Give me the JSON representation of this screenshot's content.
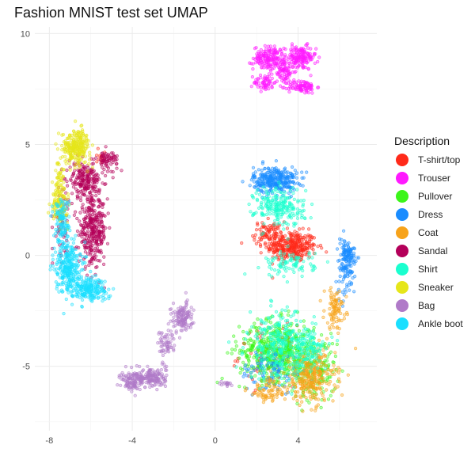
{
  "chart_data": {
    "type": "scatter",
    "title": "Fashion MNIST test set UMAP",
    "xlabel": "",
    "ylabel": "",
    "xlim": [
      -8.7,
      7.8
    ],
    "ylim": [
      -7.9,
      10.3
    ],
    "x_ticks": [
      -8,
      -4,
      0,
      4
    ],
    "y_ticks": [
      -5,
      0,
      5,
      10
    ],
    "grid": true,
    "legend": {
      "title": "Description",
      "position": "right"
    },
    "series": [
      {
        "name": "T-shirt/top",
        "color": "#ff2a1a",
        "clusters": [
          {
            "cx": 3.7,
            "cy": 0.4,
            "sx": 0.8,
            "sy": 0.45,
            "n": 320
          },
          {
            "cx": 2.6,
            "cy": 1.0,
            "sx": 0.5,
            "sy": 0.35,
            "n": 90
          },
          {
            "cx": 2.5,
            "cy": -4.5,
            "sx": 0.9,
            "sy": 0.9,
            "n": 60
          },
          {
            "cx": -5.5,
            "cy": 4.4,
            "sx": 0.3,
            "sy": 0.3,
            "n": 12
          }
        ]
      },
      {
        "name": "Trouser",
        "color": "#ff19ff",
        "clusters": [
          {
            "cx": 2.6,
            "cy": 8.9,
            "sx": 0.5,
            "sy": 0.35,
            "n": 160
          },
          {
            "cx": 4.1,
            "cy": 8.9,
            "sx": 0.5,
            "sy": 0.35,
            "n": 160
          },
          {
            "cx": 3.3,
            "cy": 8.3,
            "sx": 0.35,
            "sy": 0.4,
            "n": 80
          },
          {
            "cx": 2.4,
            "cy": 7.8,
            "sx": 0.35,
            "sy": 0.25,
            "n": 60
          },
          {
            "cx": 4.2,
            "cy": 7.6,
            "sx": 0.45,
            "sy": 0.2,
            "n": 90
          }
        ]
      },
      {
        "name": "Pullover",
        "color": "#3cf51a",
        "clusters": [
          {
            "cx": 3.0,
            "cy": -4.3,
            "sx": 1.2,
            "sy": 0.9,
            "n": 520
          },
          {
            "cx": 4.8,
            "cy": -5.2,
            "sx": 0.7,
            "sy": 0.9,
            "n": 160
          }
        ]
      },
      {
        "name": "Dress",
        "color": "#1a8cff",
        "clusters": [
          {
            "cx": 2.9,
            "cy": 3.4,
            "sx": 0.7,
            "sy": 0.4,
            "n": 320
          },
          {
            "cx": 6.3,
            "cy": -0.5,
            "sx": 0.3,
            "sy": 0.9,
            "n": 110
          },
          {
            "cx": 6.5,
            "cy": 0.1,
            "sx": 0.25,
            "sy": 0.25,
            "n": 50
          },
          {
            "cx": 2.7,
            "cy": -5.2,
            "sx": 1.0,
            "sy": 0.7,
            "n": 90
          }
        ]
      },
      {
        "name": "Coat",
        "color": "#f7a31a",
        "clusters": [
          {
            "cx": 4.6,
            "cy": -5.5,
            "sx": 0.8,
            "sy": 0.8,
            "n": 300
          },
          {
            "cx": 5.8,
            "cy": -2.4,
            "sx": 0.35,
            "sy": 0.6,
            "n": 90
          },
          {
            "cx": 2.6,
            "cy": -6.1,
            "sx": 0.7,
            "sy": 0.4,
            "n": 80
          }
        ]
      },
      {
        "name": "Sandal",
        "color": "#b4005a",
        "clusters": [
          {
            "cx": -5.9,
            "cy": 1.1,
            "sx": 0.45,
            "sy": 1.0,
            "n": 340
          },
          {
            "cx": -6.3,
            "cy": 3.4,
            "sx": 0.5,
            "sy": 0.5,
            "n": 200
          },
          {
            "cx": -5.2,
            "cy": 4.3,
            "sx": 0.35,
            "sy": 0.3,
            "n": 70
          },
          {
            "cx": -7.4,
            "cy": 1.5,
            "sx": 0.25,
            "sy": 1.0,
            "n": 60
          }
        ]
      },
      {
        "name": "Shirt",
        "color": "#1affcf",
        "clusters": [
          {
            "cx": 3.1,
            "cy": 2.2,
            "sx": 0.8,
            "sy": 0.6,
            "n": 220
          },
          {
            "cx": 3.6,
            "cy": -0.4,
            "sx": 0.8,
            "sy": 0.4,
            "n": 90
          },
          {
            "cx": 3.2,
            "cy": -4.1,
            "sx": 1.1,
            "sy": 1.0,
            "n": 300
          },
          {
            "cx": 4.6,
            "cy": -4.2,
            "sx": 0.5,
            "sy": 0.6,
            "n": 80
          }
        ]
      },
      {
        "name": "Sneaker",
        "color": "#e6e61a",
        "clusters": [
          {
            "cx": -6.7,
            "cy": 4.9,
            "sx": 0.45,
            "sy": 0.5,
            "n": 260
          },
          {
            "cx": -7.5,
            "cy": 3.5,
            "sx": 0.2,
            "sy": 0.6,
            "n": 50
          },
          {
            "cx": -7.5,
            "cy": 2.2,
            "sx": 0.25,
            "sy": 0.5,
            "n": 110
          }
        ]
      },
      {
        "name": "Bag",
        "color": "#b07ac8",
        "clusters": [
          {
            "cx": -1.6,
            "cy": -2.8,
            "sx": 0.35,
            "sy": 0.45,
            "n": 130
          },
          {
            "cx": -2.4,
            "cy": -4.0,
            "sx": 0.25,
            "sy": 0.5,
            "n": 60
          },
          {
            "cx": -3.1,
            "cy": -5.5,
            "sx": 0.5,
            "sy": 0.3,
            "n": 170
          },
          {
            "cx": -4.0,
            "cy": -5.7,
            "sx": 0.35,
            "sy": 0.35,
            "n": 90
          },
          {
            "cx": 0.5,
            "cy": -5.8,
            "sx": 0.2,
            "sy": 0.1,
            "n": 15
          }
        ]
      },
      {
        "name": "Ankle boot",
        "color": "#1adfff",
        "clusters": [
          {
            "cx": -7.1,
            "cy": -0.5,
            "sx": 0.4,
            "sy": 0.8,
            "n": 280
          },
          {
            "cx": -6.1,
            "cy": -1.5,
            "sx": 0.6,
            "sy": 0.35,
            "n": 200
          },
          {
            "cx": -7.4,
            "cy": 1.5,
            "sx": 0.25,
            "sy": 0.8,
            "n": 110
          }
        ]
      }
    ]
  }
}
